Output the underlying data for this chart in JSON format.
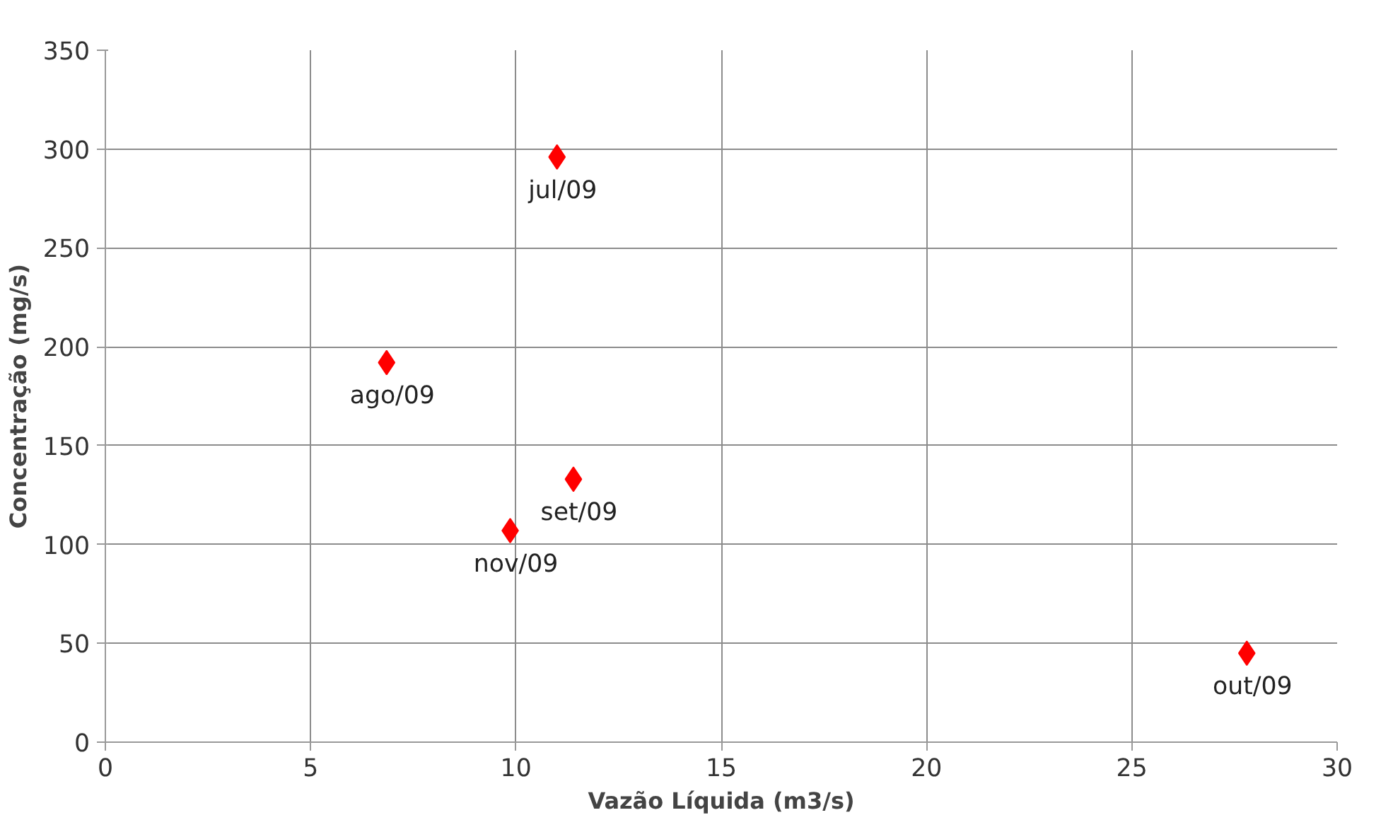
{
  "chart_data": {
    "type": "scatter",
    "xlabel": "Vazão Líquida (m3/s)",
    "ylabel": "Concentração (mg/s)",
    "x": [
      11.0,
      6.85,
      11.4,
      27.8,
      9.86
    ],
    "values": [
      296,
      192,
      133,
      45,
      107
    ],
    "color": "#ff0000",
    "marker": "diamond",
    "xlim": [
      0,
      30
    ],
    "xticks": [
      0,
      5,
      10,
      15,
      20,
      25,
      30
    ],
    "ylim": [
      0,
      350
    ],
    "yticks": [
      0,
      50,
      100,
      150,
      200,
      250,
      300,
      350
    ],
    "grid": true,
    "annotations": [
      {
        "text": "jul/09",
        "x": 11.0,
        "y": 296
      },
      {
        "text": "ago/09",
        "x": 6.85,
        "y": 192
      },
      {
        "text": "set/09",
        "x": 11.4,
        "y": 133
      },
      {
        "text": "out/09",
        "x": 27.8,
        "y": 45
      },
      {
        "text": "nov/09",
        "x": 9.86,
        "y": 107
      }
    ]
  }
}
